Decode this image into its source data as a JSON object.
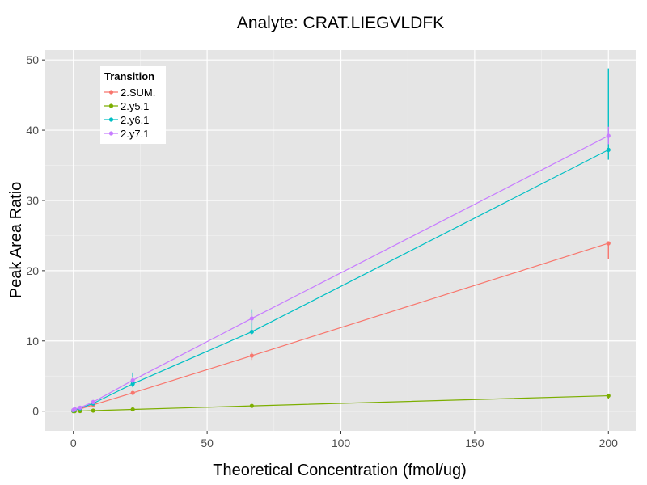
{
  "chart_data": {
    "type": "line",
    "title": "Analyte: CRAT.LIEGVLDFK",
    "xlabel": "Theoretical Concentration (fmol/ug)",
    "ylabel": "Peak Area Ratio",
    "xlim": [
      -10.5,
      210.5
    ],
    "ylim": [
      -2.8,
      51.4
    ],
    "xticks": [
      0,
      50,
      100,
      150,
      200
    ],
    "yticks": [
      0,
      10,
      20,
      30,
      40,
      50
    ],
    "grid": true,
    "legend": {
      "title": "Transition",
      "position": "top-left (inside)"
    },
    "x": [
      0,
      0.5,
      2.5,
      7.4,
      22.2,
      66.7,
      200
    ],
    "series": [
      {
        "name": "2.SUM.",
        "color": "#F8766D",
        "values": [
          0.05,
          0.1,
          0.3,
          0.9,
          2.6,
          7.9,
          23.9
        ],
        "error": [
          [
            0,
            0.15
          ],
          [
            0,
            0.2
          ],
          [
            0.1,
            0.5
          ],
          [
            0.6,
            1.2
          ],
          [
            2.4,
            2.8
          ],
          [
            7.3,
            8.5
          ],
          [
            21.6,
            24.1
          ]
        ]
      },
      {
        "name": "2.y5.1",
        "color": "#7CAE00",
        "values": [
          0.0,
          0.0,
          0.02,
          0.08,
          0.25,
          0.75,
          2.2
        ],
        "error": [
          [
            0,
            0.05
          ],
          [
            0,
            0.05
          ],
          [
            0,
            0.05
          ],
          [
            0.05,
            0.12
          ],
          [
            0.2,
            0.3
          ],
          [
            0.65,
            0.85
          ],
          [
            1.8,
            2.5
          ]
        ]
      },
      {
        "name": "2.y6.1",
        "color": "#00BFC4",
        "values": [
          0.1,
          0.2,
          0.4,
          1.1,
          3.9,
          11.3,
          37.2
        ],
        "error": [
          [
            0,
            0.3
          ],
          [
            0,
            0.4
          ],
          [
            0.2,
            0.6
          ],
          [
            0.8,
            1.4
          ],
          [
            3.4,
            5.5
          ],
          [
            10.8,
            14.5
          ],
          [
            35.8,
            48.8
          ]
        ]
      },
      {
        "name": "2.y7.1",
        "color": "#C77CFF",
        "values": [
          0.15,
          0.3,
          0.5,
          1.3,
          4.4,
          13.2,
          39.2
        ],
        "error": [
          [
            0,
            0.4
          ],
          [
            0.1,
            0.5
          ],
          [
            0.3,
            0.7
          ],
          [
            1.0,
            1.6
          ],
          [
            4.0,
            4.8
          ],
          [
            12.5,
            14.0
          ],
          [
            38.0,
            40.5
          ]
        ]
      }
    ]
  }
}
